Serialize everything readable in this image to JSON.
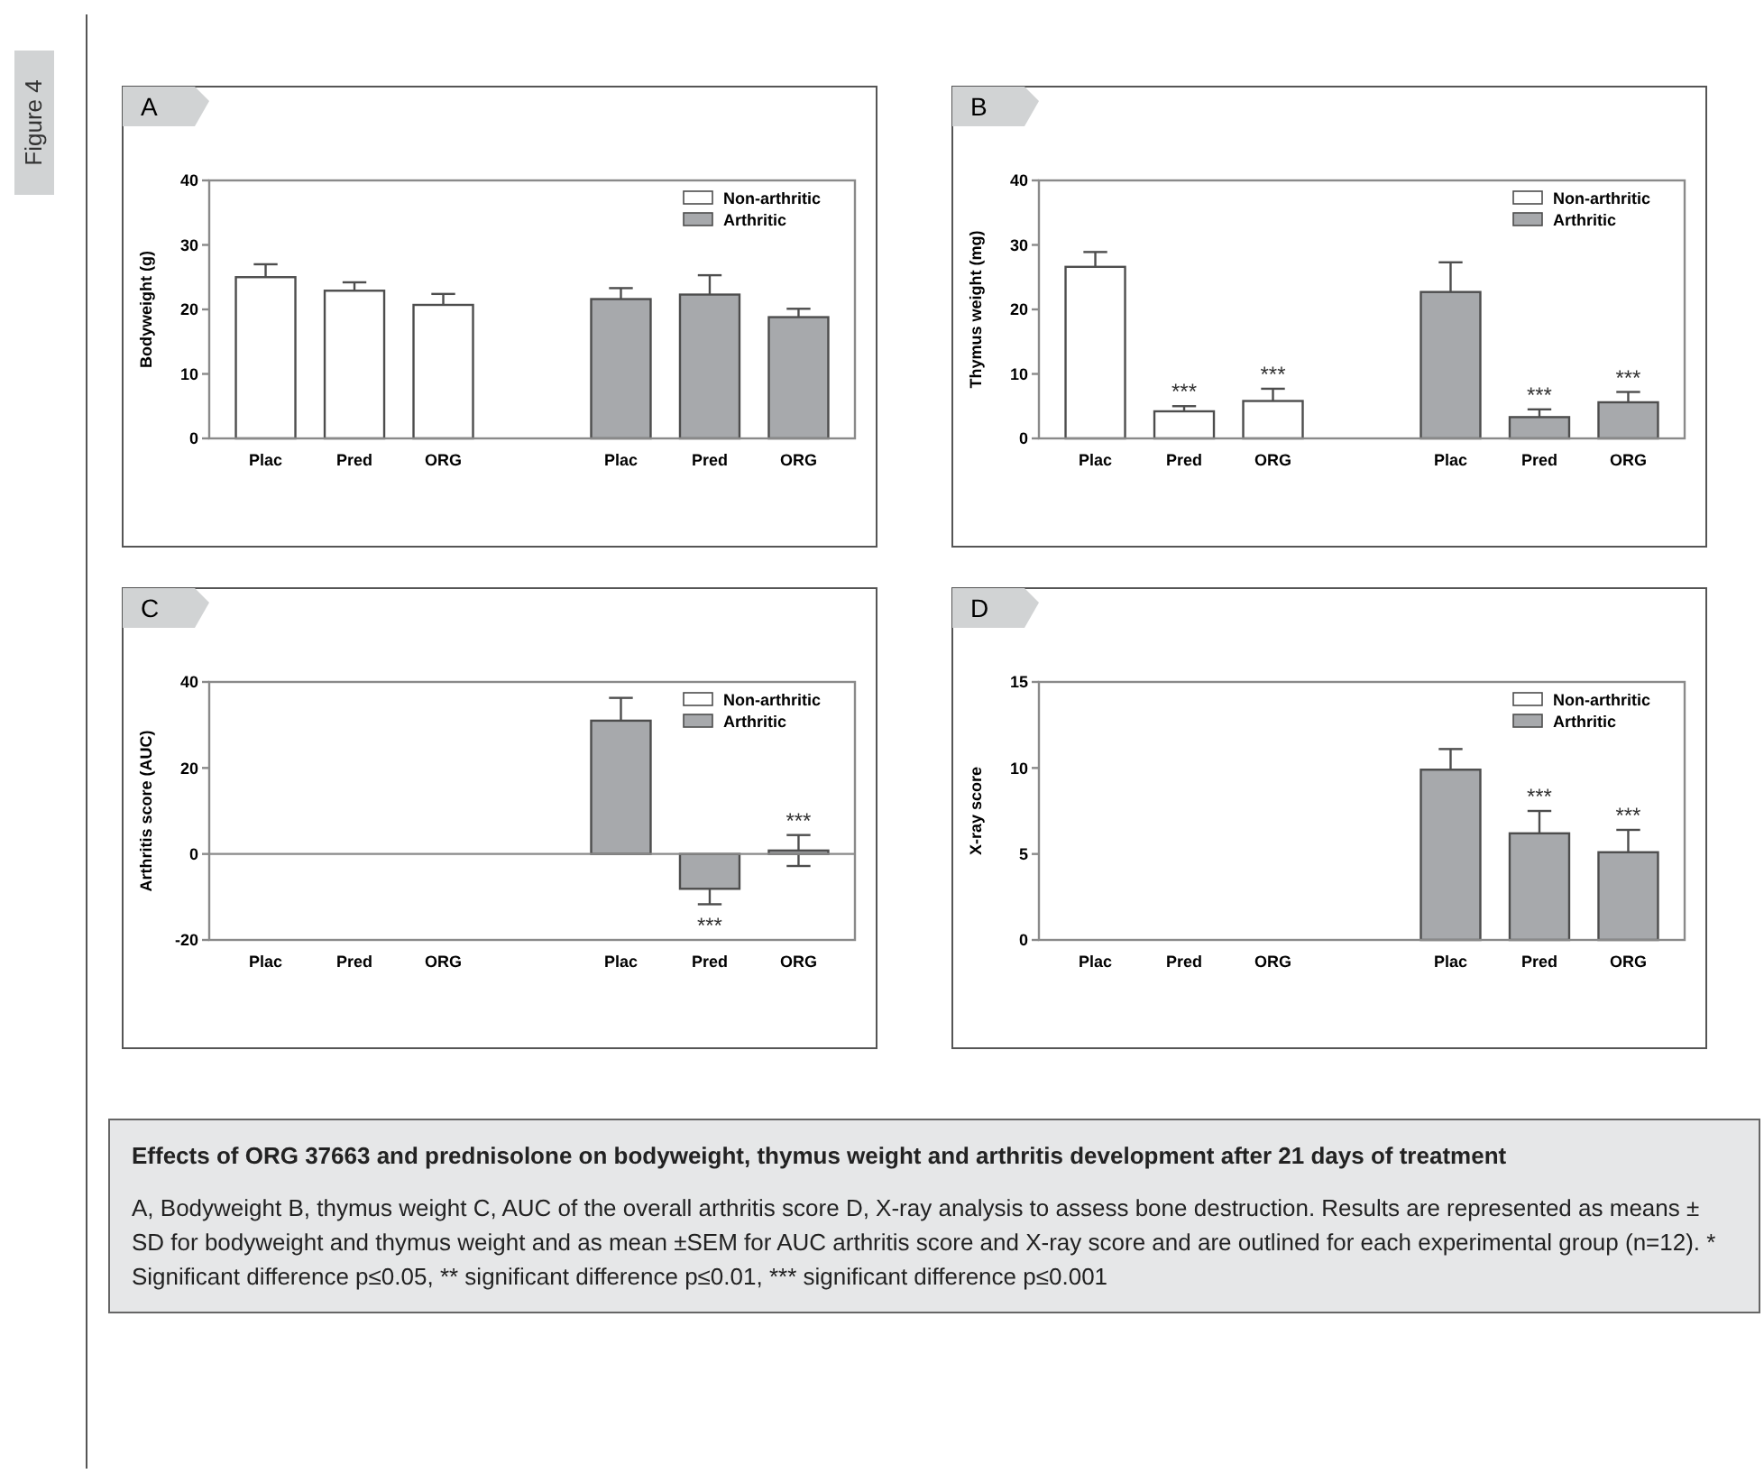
{
  "chart_data": [
    {
      "type": "bar",
      "title": "A",
      "ylabel": "Bodyweight (g)",
      "categories": [
        "Plac",
        "Pred",
        "ORG",
        null,
        "Plac",
        "Pred",
        "ORG"
      ],
      "ylim": [
        0,
        40
      ],
      "yticks": [
        0,
        10,
        20,
        30,
        40
      ],
      "legend": "top right",
      "series": [
        {
          "name": "Non-arthritic",
          "color": "#ffffff",
          "values": [
            25,
            22.9,
            20.7,
            null,
            null,
            null,
            null
          ],
          "errors": [
            2,
            1.3,
            1.7,
            null,
            null,
            null,
            null
          ]
        },
        {
          "name": "Arthritic",
          "color": "#a7a9ac",
          "values": [
            null,
            null,
            null,
            null,
            21.6,
            22.3,
            18.8
          ],
          "errors": [
            null,
            null,
            null,
            null,
            1.7,
            3,
            1.3
          ]
        }
      ]
    },
    {
      "type": "bar",
      "title": "B",
      "ylabel": "Thymus weight (mg)",
      "categories": [
        "Plac",
        "Pred",
        "ORG",
        null,
        "Plac",
        "Pred",
        "ORG"
      ],
      "ylim": [
        0,
        40
      ],
      "yticks": [
        0,
        10,
        20,
        30,
        40
      ],
      "legend": "top right",
      "series": [
        {
          "name": "Non-arthritic",
          "color": "#ffffff",
          "values": [
            26.6,
            4.2,
            5.8,
            null,
            null,
            null,
            null
          ],
          "errors": [
            2.3,
            0.8,
            1.9,
            null,
            null,
            null,
            null
          ],
          "value_labels": [
            null,
            "***",
            "***",
            null,
            null,
            null,
            null
          ]
        },
        {
          "name": "Arthritic",
          "color": "#a7a9ac",
          "values": [
            null,
            null,
            null,
            null,
            22.7,
            3.3,
            5.6
          ],
          "errors": [
            null,
            null,
            null,
            null,
            4.6,
            1.2,
            1.6
          ],
          "value_labels": [
            null,
            null,
            null,
            null,
            null,
            "***",
            "***"
          ]
        }
      ]
    },
    {
      "type": "bar",
      "title": "C",
      "ylabel": "Arthritis score (AUC)",
      "categories": [
        "Plac",
        "Pred",
        "ORG",
        null,
        "Plac",
        "Pred",
        "ORG"
      ],
      "ylim": [
        -20,
        40
      ],
      "yticks": [
        -20,
        0,
        20,
        40
      ],
      "legend": "top right",
      "series": [
        {
          "name": "Non-arthritic",
          "color": "#ffffff",
          "values": [
            null,
            null,
            null,
            null,
            null,
            null,
            null
          ]
        },
        {
          "name": "Arthritic",
          "color": "#a7a9ac",
          "values": [
            null,
            null,
            null,
            null,
            31,
            -8.1,
            0.8
          ],
          "errors": [
            null,
            null,
            null,
            null,
            5.3,
            3.6,
            3.6
          ],
          "value_labels": [
            null,
            null,
            null,
            null,
            null,
            "***",
            "***"
          ]
        }
      ]
    },
    {
      "type": "bar",
      "title": "D",
      "ylabel": "X-ray score",
      "categories": [
        "Plac",
        "Pred",
        "ORG",
        null,
        "Plac",
        "Pred",
        "ORG"
      ],
      "ylim": [
        0,
        15
      ],
      "yticks": [
        0,
        5,
        10,
        15
      ],
      "legend": "top right",
      "series": [
        {
          "name": "Non-arthritic",
          "color": "#ffffff",
          "values": [
            null,
            null,
            null,
            null,
            null,
            null,
            null
          ]
        },
        {
          "name": "Arthritic",
          "color": "#a7a9ac",
          "values": [
            null,
            null,
            null,
            null,
            9.9,
            6.2,
            5.1
          ],
          "errors": [
            null,
            null,
            null,
            null,
            1.2,
            1.3,
            1.3
          ],
          "value_labels": [
            null,
            null,
            null,
            null,
            null,
            "***",
            "***"
          ]
        }
      ]
    },
    {
      "type": "other",
      "title": "Effects of ORG 37663 and prednisolone on bodyweight, thymus weight and arthritis development after 21 days of treatment",
      "annotations": [
        "A, Bodyweight B, thymus weight C, AUC of the overall arthritis score D, X-ray analysis to assess bone destruction. Results are represented as means ± SD for bodyweight and thymus weight and as mean ±SEM for AUC arthritis score and X-ray score and are outlined for each experimental group (n=12). * Significant difference p≤0.05, ** significant difference p≤0.01, *** significant difference p≤0.001",
        "Figure 4"
      ]
    }
  ]
}
